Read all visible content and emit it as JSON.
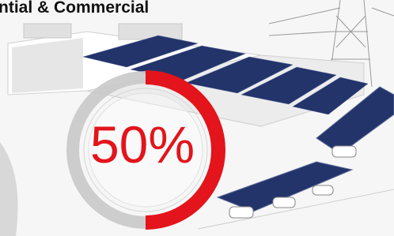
{
  "header": {
    "title": "ntial & Commercial"
  },
  "gauge": {
    "value": 50,
    "label": "50%",
    "color": "#e3141b"
  }
}
